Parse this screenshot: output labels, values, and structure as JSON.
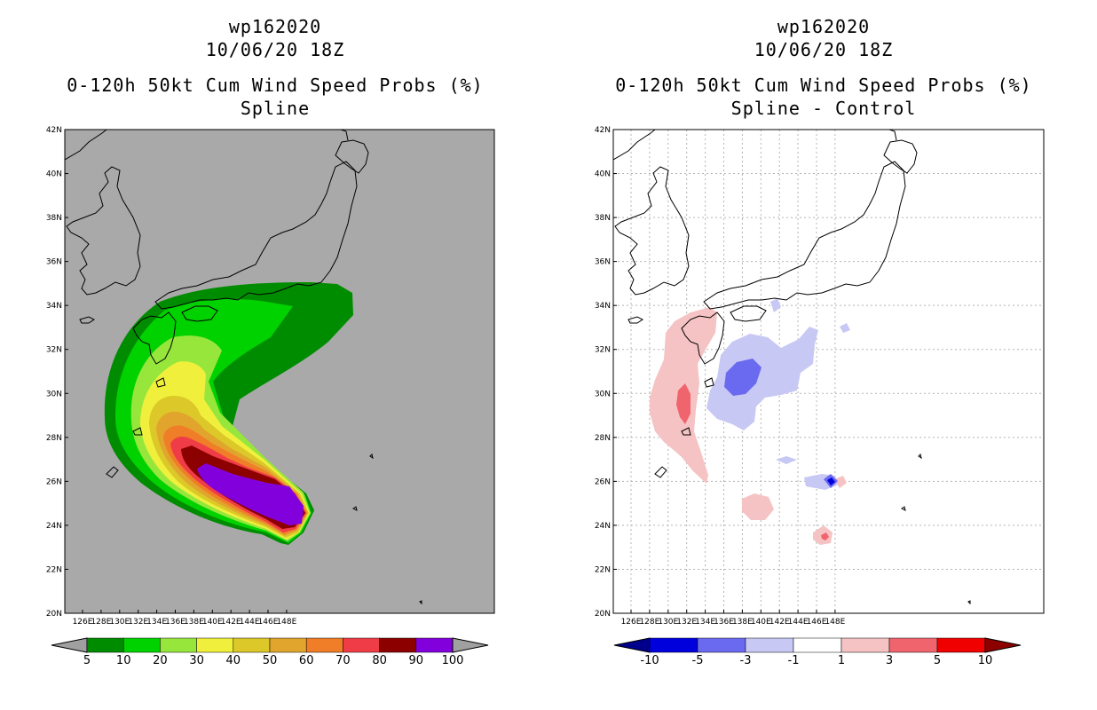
{
  "left": {
    "storm_id": "wp162020",
    "datetime": "10/06/20 18Z",
    "product": "0-120h 50kt Cum Wind Speed Probs (%)",
    "subtitle": "Spline",
    "colorbar": {
      "labels": [
        "5",
        "10",
        "20",
        "30",
        "40",
        "50",
        "60",
        "70",
        "80",
        "90",
        "100"
      ],
      "colors": [
        "#008c00",
        "#00d200",
        "#96e63c",
        "#f0f03c",
        "#dcc828",
        "#e1a52d",
        "#f07d28",
        "#f03c46",
        "#8c0000",
        "#8200dc"
      ],
      "end_color": "#a0a0a0"
    }
  },
  "right": {
    "storm_id": "wp162020",
    "datetime": "10/06/20 18Z",
    "product": "0-120h 50kt Cum Wind Speed Probs (%)",
    "subtitle": "Spline - Control",
    "colorbar": {
      "labels": [
        "-10",
        "-5",
        "-3",
        "-1",
        "1",
        "3",
        "5",
        "10"
      ],
      "colors": [
        "#0000dc",
        "#6a6af0",
        "#c8c8f5",
        "#ffffff",
        "#f5c3c3",
        "#f0646e",
        "#f00000"
      ],
      "end_low": "#00008c",
      "end_high": "#8c0000"
    }
  },
  "axes": {
    "lat_labels": [
      "42N",
      "40N",
      "38N",
      "36N",
      "34N",
      "32N",
      "30N",
      "28N",
      "26N",
      "24N",
      "22N",
      "20N"
    ],
    "lon_labels": [
      "126E",
      "128E",
      "130E",
      "132E",
      "134E",
      "136E",
      "138E",
      "140E",
      "142E",
      "144E",
      "146E",
      "148E"
    ]
  },
  "colors": {
    "map_bg_left": "#a9a9a9",
    "map_bg_right": "#ffffff",
    "coast": "#000000",
    "grid": "#b4b4b4"
  }
}
